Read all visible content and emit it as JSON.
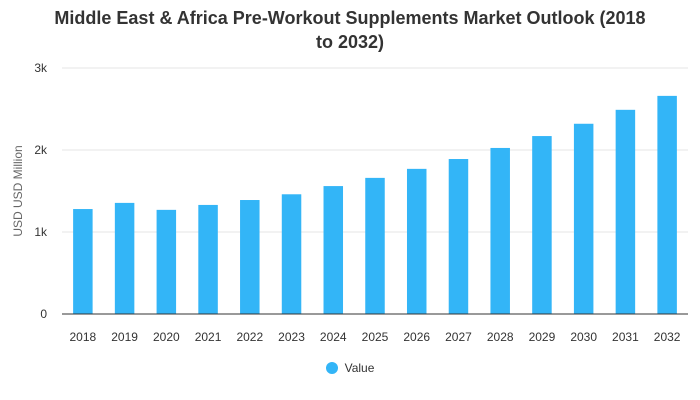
{
  "chart_data": {
    "type": "bar",
    "title_lines": [
      "Middle East & Africa Pre-Workout Supplements Market Outlook (2018",
      "to 2032)"
    ],
    "xlabel": "",
    "ylabel": "USD USD Million",
    "categories": [
      "2018",
      "2019",
      "2020",
      "2021",
      "2022",
      "2023",
      "2024",
      "2025",
      "2026",
      "2027",
      "2028",
      "2029",
      "2030",
      "2031",
      "2032"
    ],
    "series": [
      {
        "name": "Value",
        "values": [
          1280,
          1355,
          1270,
          1330,
          1390,
          1460,
          1560,
          1660,
          1770,
          1890,
          2025,
          2170,
          2320,
          2490,
          2660
        ]
      }
    ],
    "ylim": [
      0,
      3000
    ],
    "yticks": [
      0,
      1000,
      2000,
      3000
    ],
    "ytick_labels": [
      "0",
      "1k",
      "2k",
      "3k"
    ],
    "grid": true,
    "legend_position": "bottom-center",
    "colors": {
      "bar": "#33b5f7",
      "grid": "#e6e6e6",
      "axis": "#333333"
    }
  }
}
